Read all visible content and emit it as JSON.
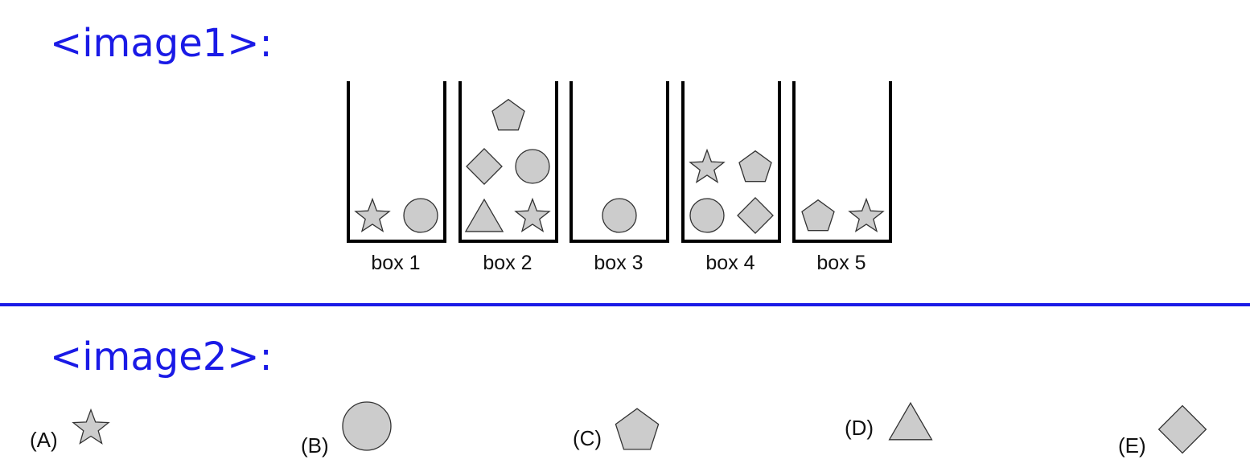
{
  "headers": {
    "image1": "<image1>:",
    "image2": "<image2>:"
  },
  "boxes": [
    {
      "label": "box 1",
      "shapes": [
        "star",
        "circle"
      ]
    },
    {
      "label": "box 2",
      "shapes": [
        "pentagon",
        "diamond",
        "circle",
        "triangle",
        "star"
      ]
    },
    {
      "label": "box 3",
      "shapes": [
        "circle"
      ]
    },
    {
      "label": "box 4",
      "shapes": [
        "star",
        "pentagon",
        "circle",
        "diamond"
      ]
    },
    {
      "label": "box 5",
      "shapes": [
        "pentagon",
        "star"
      ]
    }
  ],
  "options": [
    {
      "label": "(A)",
      "shape": "star"
    },
    {
      "label": "(B)",
      "shape": "circle"
    },
    {
      "label": "(C)",
      "shape": "pentagon"
    },
    {
      "label": "(D)",
      "shape": "triangle"
    },
    {
      "label": "(E)",
      "shape": "diamond"
    }
  ],
  "colors": {
    "header": "#1a1ae6",
    "divider": "#1a1ae6",
    "shape_fill": "#cccccc",
    "shape_stroke": "#333333"
  }
}
